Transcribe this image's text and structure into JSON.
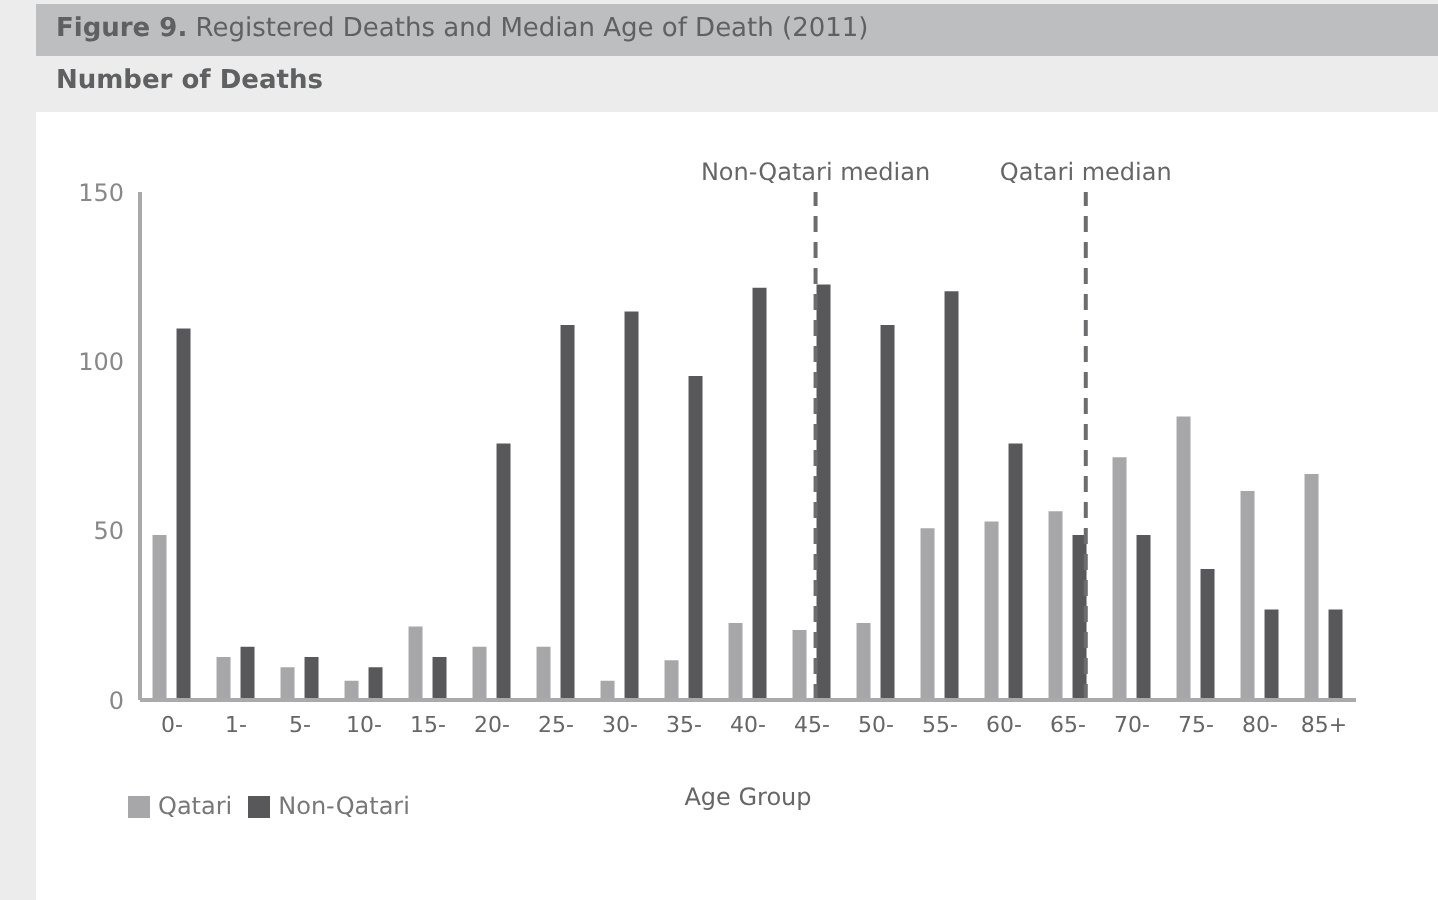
{
  "chart_data": {
    "type": "bar",
    "title": "Figure 9. Registered Deaths and Median Age of Death (2011)",
    "subtitle": "Number of Deaths",
    "xlabel": "Age Group",
    "categories": [
      "0-",
      "1-",
      "5-",
      "10-",
      "15-",
      "20-",
      "25-",
      "30-",
      "35-",
      "40-",
      "45-",
      "50-",
      "55-",
      "60-",
      "65-",
      "70-",
      "75-",
      "80-",
      "85+"
    ],
    "series": [
      {
        "name": "Qatari",
        "color": "#a7a7aa",
        "values": [
          49,
          13,
          10,
          6,
          22,
          16,
          16,
          6,
          12,
          23,
          21,
          23,
          51,
          53,
          56,
          72,
          84,
          62,
          67
        ]
      },
      {
        "name": "Non-Qatari",
        "color": "#58585a",
        "values": [
          110,
          16,
          13,
          10,
          13,
          76,
          111,
          115,
          96,
          122,
          123,
          111,
          121,
          76,
          49,
          49,
          39,
          27,
          27
        ]
      }
    ],
    "ylim": [
      0,
      150
    ],
    "yticks": [
      0,
      50,
      100,
      150
    ],
    "grid": false,
    "legend": "bottom left",
    "ref_lines": [
      {
        "axis": "x",
        "value": "45-",
        "label": "Non-Qatari median",
        "color": "#6d6d6f",
        "line_style": "dashed"
      },
      {
        "axis": "x",
        "value": "65-",
        "label": "Qatari median",
        "color": "#6d6d6f",
        "line_style": "dashed"
      }
    ]
  }
}
